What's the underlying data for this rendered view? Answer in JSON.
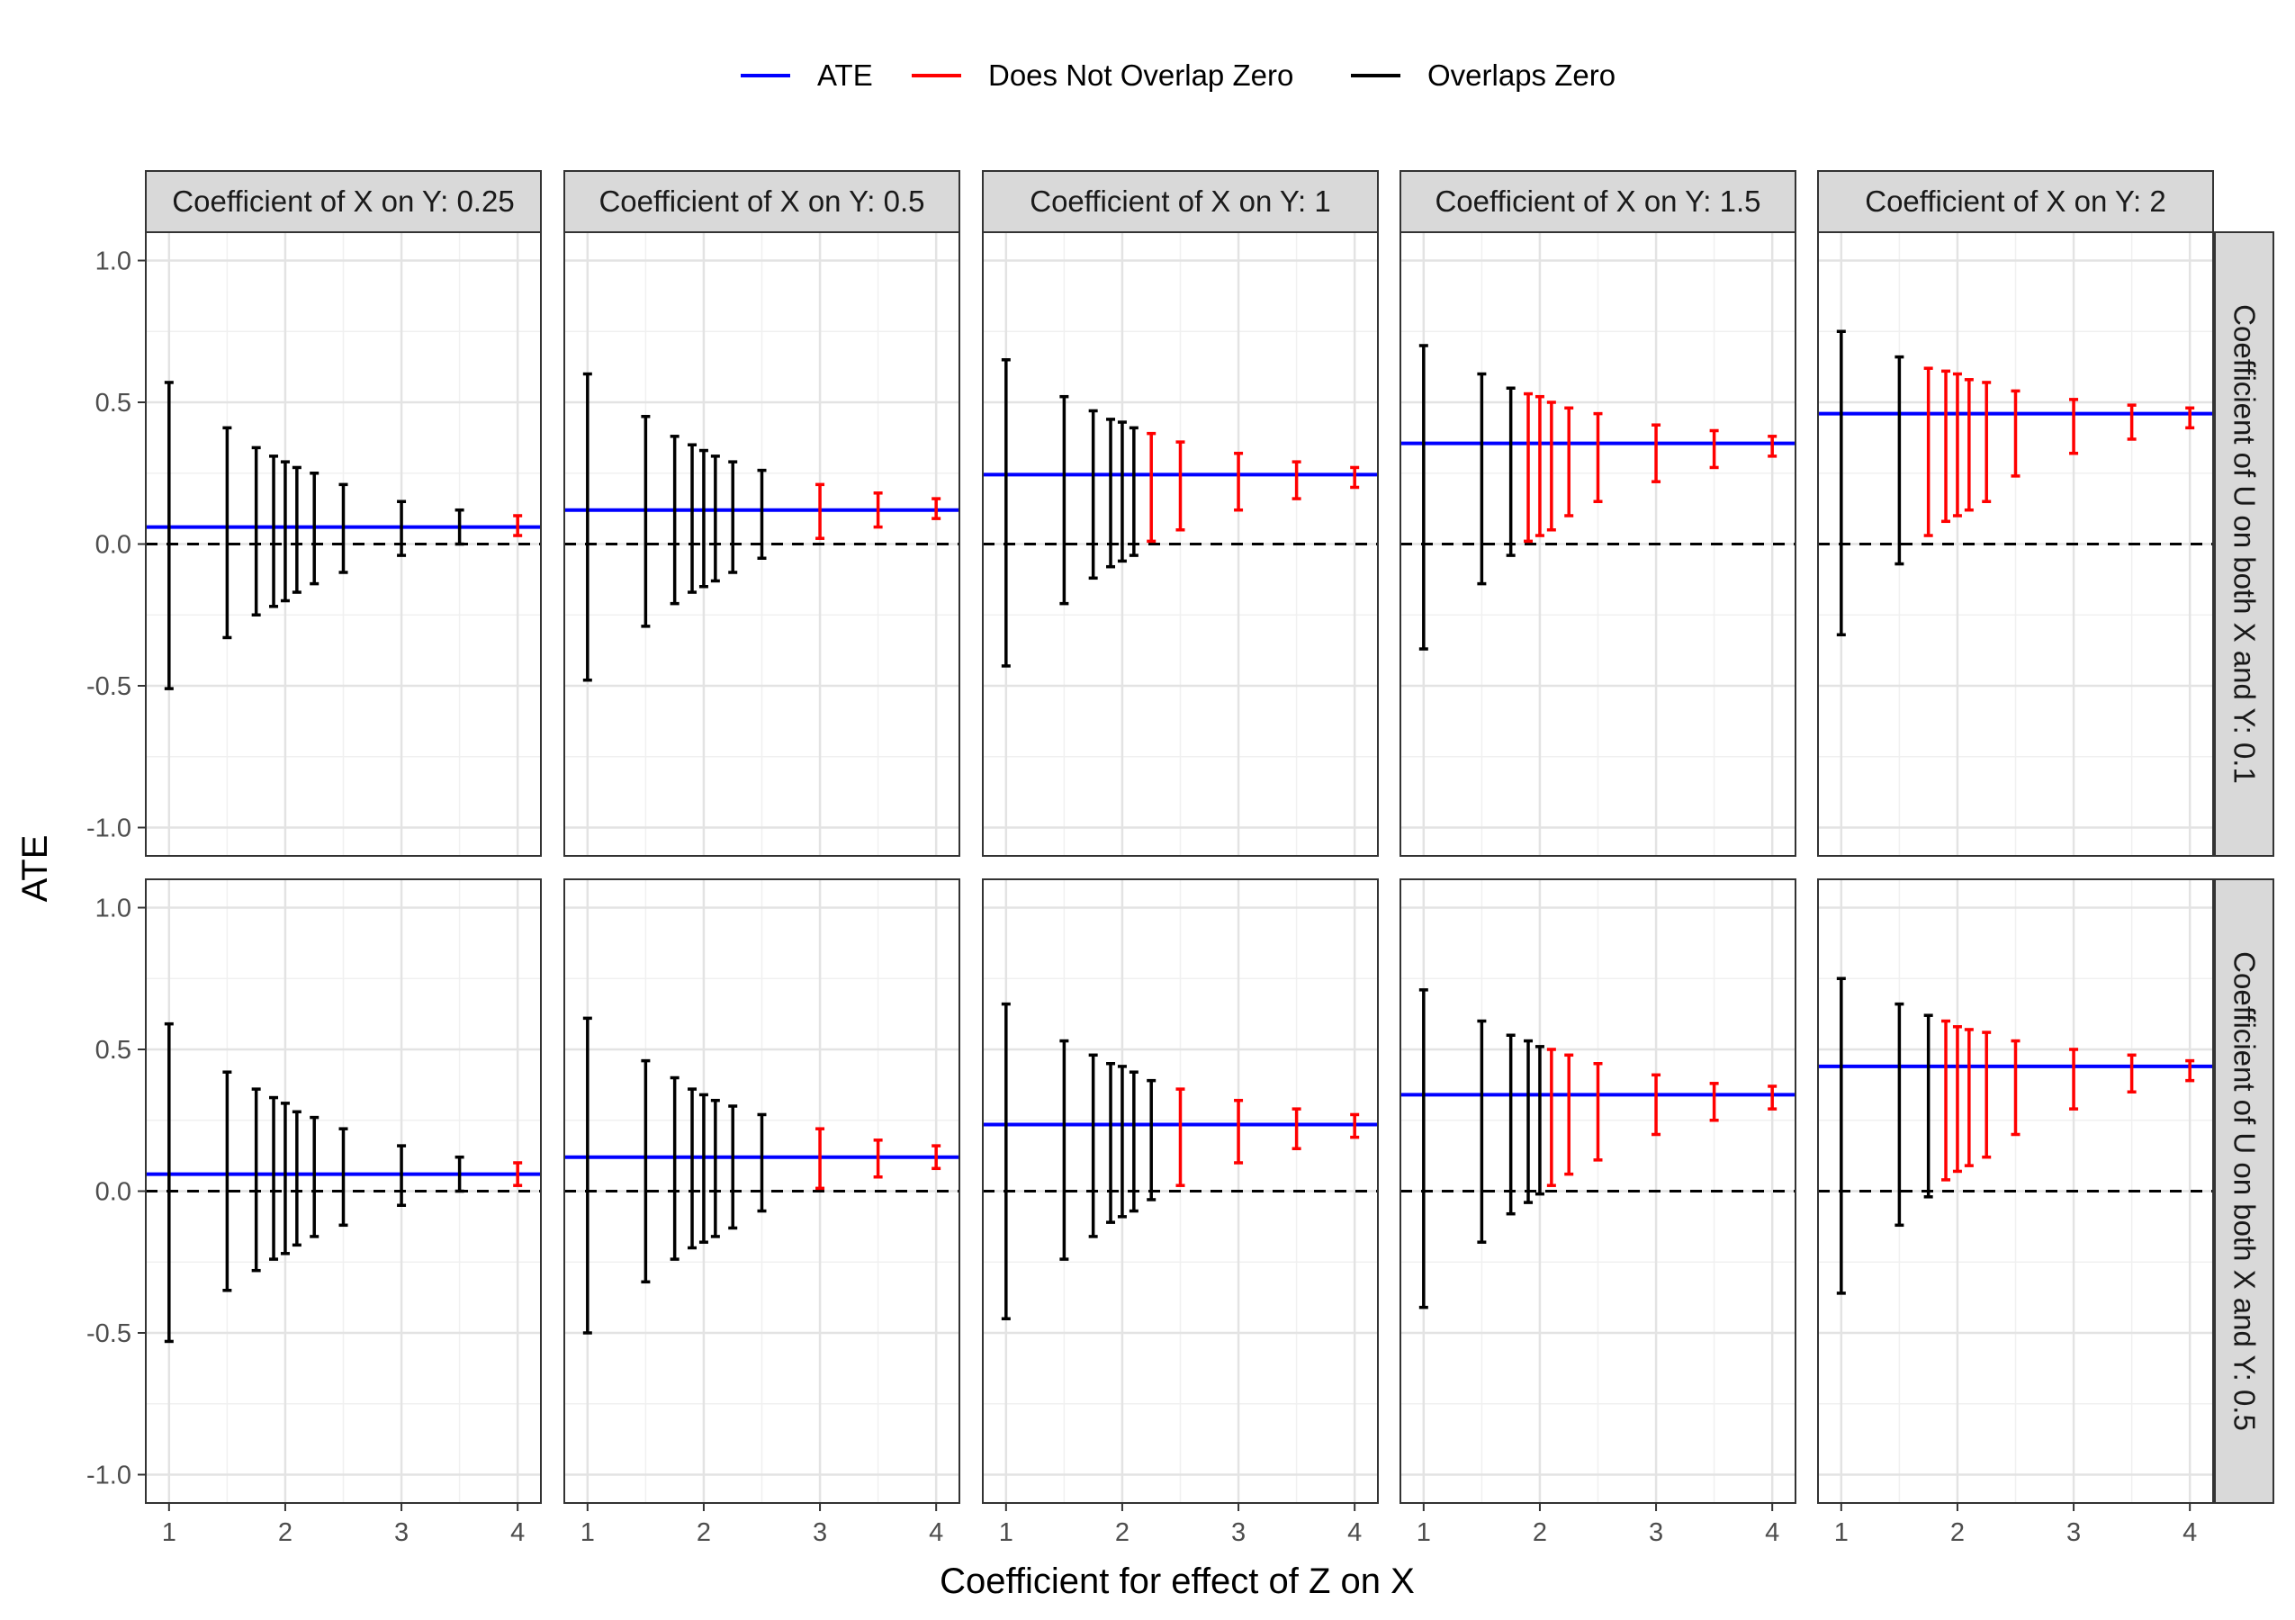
{
  "chart_data": {
    "type": "errorbar-facet",
    "xlabel": "Coefficient for effect of Z on X",
    "ylabel": "ATE",
    "xlim": [
      0.8,
      4.2
    ],
    "ylim": [
      -1.1,
      1.1
    ],
    "x_ticks": [
      1,
      2,
      3,
      4
    ],
    "y_ticks": [
      -1.0,
      -0.5,
      0.0,
      0.5,
      1.0
    ],
    "y_tick_labels": [
      "-1.0",
      "-0.5",
      "0.0",
      "0.5",
      "1.0"
    ],
    "x_tick_labels": [
      "1",
      "2",
      "3",
      "4"
    ],
    "reference_line": 0,
    "legend": {
      "position": "top",
      "entries": [
        {
          "label": "ATE",
          "color": "#0000ff"
        },
        {
          "label": "Does Not Overlap Zero",
          "color": "#ff0000"
        },
        {
          "label": "Overlaps Zero",
          "color": "#000000"
        }
      ]
    },
    "colors": {
      "ate": "#0000ff",
      "not_overlap": "#ff0000",
      "overlap": "#000000"
    },
    "col_strips": [
      "Coefficient of X on Y: 0.25",
      "Coefficient of X on Y: 0.5",
      "Coefficient of X on Y: 1",
      "Coefficient of X on Y: 1.5",
      "Coefficient of X on Y: 2"
    ],
    "row_strips": [
      "Coefficient of U on both X and Y: 0.1",
      "Coefficient of U on both X and Y: 0.5"
    ],
    "x": [
      1,
      1.5,
      1.75,
      1.9,
      2,
      2.1,
      2.25,
      2.5,
      3,
      3.5,
      4
    ],
    "panels": [
      {
        "row": 0,
        "col": 0,
        "ate": 0.06,
        "lo": [
          -0.51,
          -0.33,
          -0.25,
          -0.22,
          -0.2,
          -0.17,
          -0.14,
          -0.1,
          -0.04,
          0.0,
          0.03
        ],
        "hi": [
          0.57,
          0.41,
          0.34,
          0.31,
          0.29,
          0.27,
          0.25,
          0.21,
          0.15,
          0.12,
          0.1
        ]
      },
      {
        "row": 0,
        "col": 1,
        "ate": 0.12,
        "lo": [
          -0.48,
          -0.29,
          -0.21,
          -0.17,
          -0.15,
          -0.13,
          -0.1,
          -0.05,
          0.02,
          0.06,
          0.09
        ],
        "hi": [
          0.6,
          0.45,
          0.38,
          0.35,
          0.33,
          0.31,
          0.29,
          0.26,
          0.21,
          0.18,
          0.16
        ]
      },
      {
        "row": 0,
        "col": 2,
        "ate": 0.245,
        "lo": [
          -0.43,
          -0.21,
          -0.12,
          -0.08,
          -0.06,
          -0.04,
          0.01,
          0.05,
          0.12,
          0.16,
          0.2
        ],
        "hi": [
          0.65,
          0.52,
          0.47,
          0.44,
          0.43,
          0.41,
          0.39,
          0.36,
          0.32,
          0.29,
          0.27
        ]
      },
      {
        "row": 0,
        "col": 3,
        "ate": 0.355,
        "lo": [
          -0.37,
          -0.14,
          -0.04,
          0.01,
          0.03,
          0.05,
          0.1,
          0.15,
          0.22,
          0.27,
          0.31
        ],
        "hi": [
          0.7,
          0.6,
          0.55,
          0.53,
          0.52,
          0.5,
          0.48,
          0.46,
          0.42,
          0.4,
          0.38
        ]
      },
      {
        "row": 0,
        "col": 4,
        "ate": 0.46,
        "lo": [
          -0.32,
          -0.07,
          0.03,
          0.08,
          0.1,
          0.12,
          0.15,
          0.24,
          0.32,
          0.37,
          0.41
        ],
        "hi": [
          0.75,
          0.66,
          0.62,
          0.61,
          0.6,
          0.58,
          0.57,
          0.54,
          0.51,
          0.49,
          0.48
        ]
      },
      {
        "row": 1,
        "col": 0,
        "ate": 0.06,
        "lo": [
          -0.53,
          -0.35,
          -0.28,
          -0.24,
          -0.22,
          -0.19,
          -0.16,
          -0.12,
          -0.05,
          0.0,
          0.02
        ],
        "hi": [
          0.59,
          0.42,
          0.36,
          0.33,
          0.31,
          0.28,
          0.26,
          0.22,
          0.16,
          0.12,
          0.1
        ]
      },
      {
        "row": 1,
        "col": 1,
        "ate": 0.12,
        "lo": [
          -0.5,
          -0.32,
          -0.24,
          -0.2,
          -0.18,
          -0.16,
          -0.13,
          -0.07,
          0.01,
          0.05,
          0.08
        ],
        "hi": [
          0.61,
          0.46,
          0.4,
          0.36,
          0.34,
          0.32,
          0.3,
          0.27,
          0.22,
          0.18,
          0.16
        ]
      },
      {
        "row": 1,
        "col": 2,
        "ate": 0.235,
        "lo": [
          -0.45,
          -0.24,
          -0.16,
          -0.11,
          -0.09,
          -0.07,
          -0.03,
          0.02,
          0.1,
          0.15,
          0.19
        ],
        "hi": [
          0.66,
          0.53,
          0.48,
          0.45,
          0.44,
          0.42,
          0.39,
          0.36,
          0.32,
          0.29,
          0.27
        ]
      },
      {
        "row": 1,
        "col": 3,
        "ate": 0.34,
        "lo": [
          -0.41,
          -0.18,
          -0.08,
          -0.04,
          -0.01,
          0.02,
          0.06,
          0.11,
          0.2,
          0.25,
          0.29
        ],
        "hi": [
          0.71,
          0.6,
          0.55,
          0.53,
          0.51,
          0.5,
          0.48,
          0.45,
          0.41,
          0.38,
          0.37
        ]
      },
      {
        "row": 1,
        "col": 4,
        "ate": 0.44,
        "lo": [
          -0.36,
          -0.12,
          -0.02,
          0.04,
          0.07,
          0.09,
          0.12,
          0.2,
          0.29,
          0.35,
          0.39
        ],
        "hi": [
          0.75,
          0.66,
          0.62,
          0.6,
          0.58,
          0.57,
          0.56,
          0.53,
          0.5,
          0.48,
          0.46
        ]
      }
    ]
  }
}
